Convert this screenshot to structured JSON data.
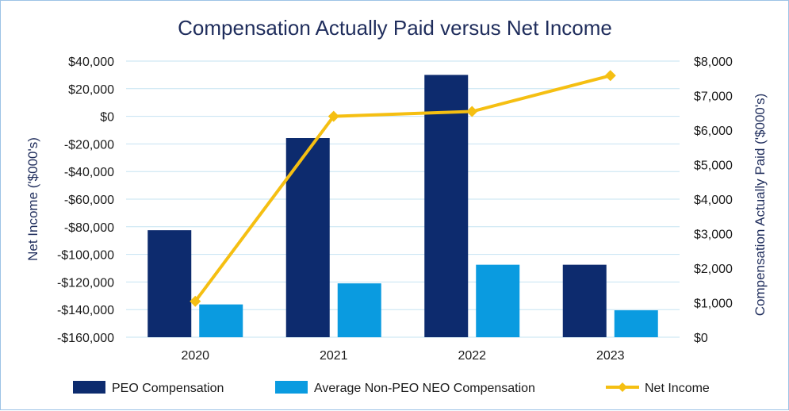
{
  "chart_data": {
    "type": "bar",
    "title": "Compensation Actually Paid versus Net Income",
    "categories": [
      "2020",
      "2021",
      "2022",
      "2023"
    ],
    "left_axis": {
      "label": "Net Income ('$000's)",
      "range": [
        -160000,
        40000
      ],
      "ticks": [
        "$40,000",
        "$20,000",
        "$0",
        "-$20,000",
        "-$40,000",
        "-$60,000",
        "-$80,000",
        "-$100,000",
        "-$120,000",
        "-$140,000",
        "-$160,000"
      ],
      "tick_values": [
        40000,
        20000,
        0,
        -20000,
        -40000,
        -60000,
        -80000,
        -100000,
        -120000,
        -140000,
        -160000
      ]
    },
    "right_axis": {
      "label": "Compensation Actually Paid ('$000's)",
      "range": [
        0,
        8000
      ],
      "ticks": [
        "$8,000",
        "$7,000",
        "$6,000",
        "$5,000",
        "$4,000",
        "$3,000",
        "$2,000",
        "$1,000",
        "$0"
      ],
      "tick_values": [
        8000,
        7000,
        6000,
        5000,
        4000,
        3000,
        2000,
        1000,
        0
      ]
    },
    "series": [
      {
        "name": "PEO Compensation",
        "kind": "bar",
        "axis": "right",
        "color": "#0d2b6e",
        "values": [
          3100,
          5770,
          7600,
          2100
        ]
      },
      {
        "name": "Average Non-PEO NEO Compensation",
        "kind": "bar",
        "axis": "right",
        "color": "#0a9be0",
        "values": [
          950,
          1560,
          2100,
          780
        ]
      },
      {
        "name": "Net Income",
        "kind": "line",
        "axis": "left",
        "color": "#f5bf12",
        "values": [
          -134000,
          0,
          3500,
          29500
        ]
      }
    ],
    "legend": "bottom",
    "grid": true
  }
}
